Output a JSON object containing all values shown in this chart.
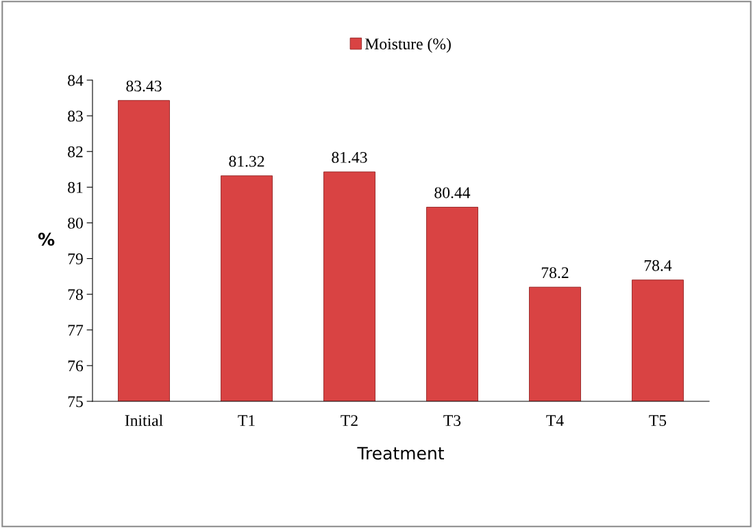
{
  "chart_data": {
    "type": "bar",
    "xlabel": "Treatment",
    "ylabel": "%",
    "categories": [
      "Initial",
      "T1",
      "T2",
      "T3",
      "T4",
      "T5"
    ],
    "series": [
      {
        "name": "Moisture (%)",
        "color": "#d94343",
        "values": [
          83.43,
          81.32,
          81.43,
          80.44,
          78.2,
          78.4
        ]
      }
    ],
    "ylim": [
      75,
      84
    ],
    "yticks": [
      75,
      76,
      77,
      78,
      79,
      80,
      81,
      82,
      83,
      84
    ],
    "data_labels": true,
    "grid": false,
    "legend": "top"
  }
}
